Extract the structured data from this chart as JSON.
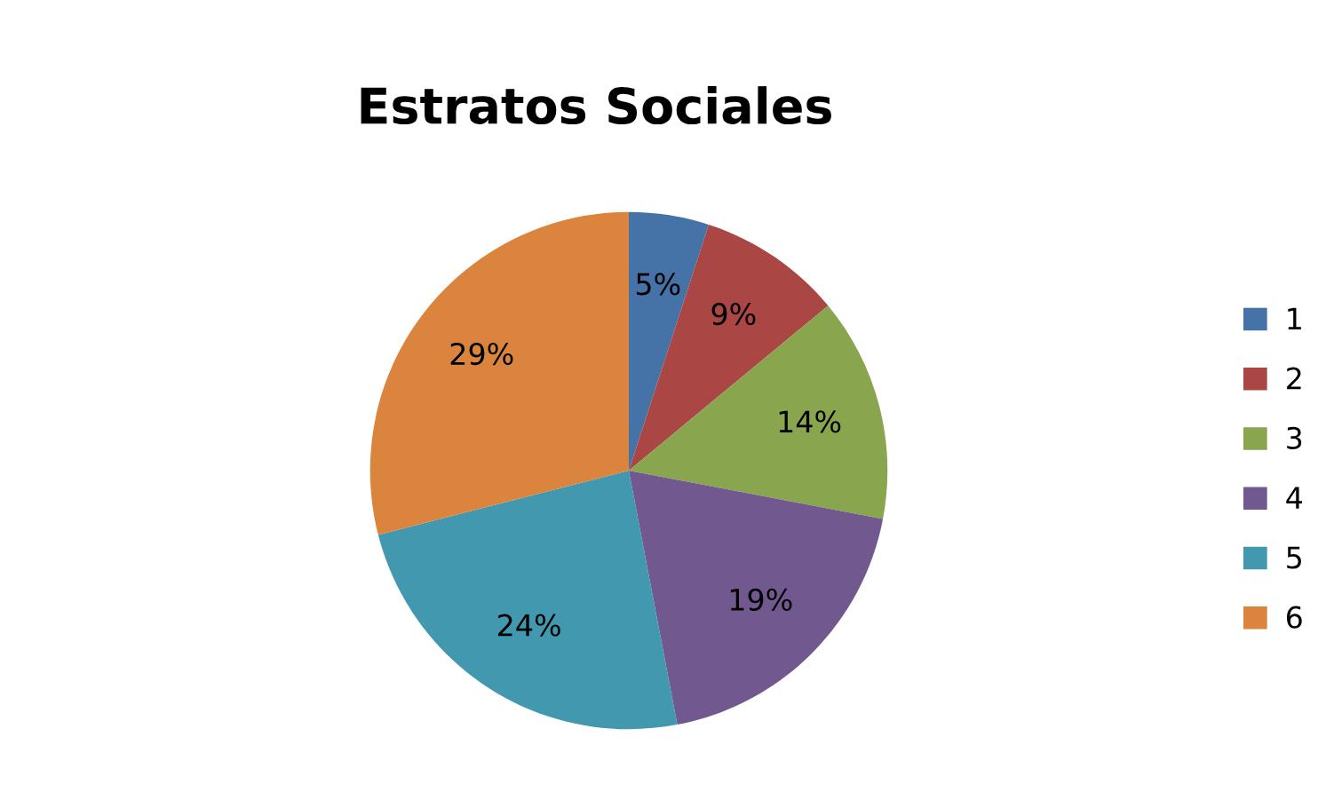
{
  "chart_data": {
    "type": "pie",
    "title": "Estratos Sociales",
    "categories": [
      "1",
      "2",
      "3",
      "4",
      "5",
      "6"
    ],
    "values": [
      5,
      9,
      14,
      19,
      24,
      29
    ],
    "colors": [
      "#4572a7",
      "#aa4643",
      "#89a54e",
      "#71588f",
      "#4198af",
      "#db843d"
    ],
    "value_labels": [
      "5%",
      "9%",
      "14%",
      "19%",
      "24%",
      "29%"
    ],
    "legend": "right"
  }
}
